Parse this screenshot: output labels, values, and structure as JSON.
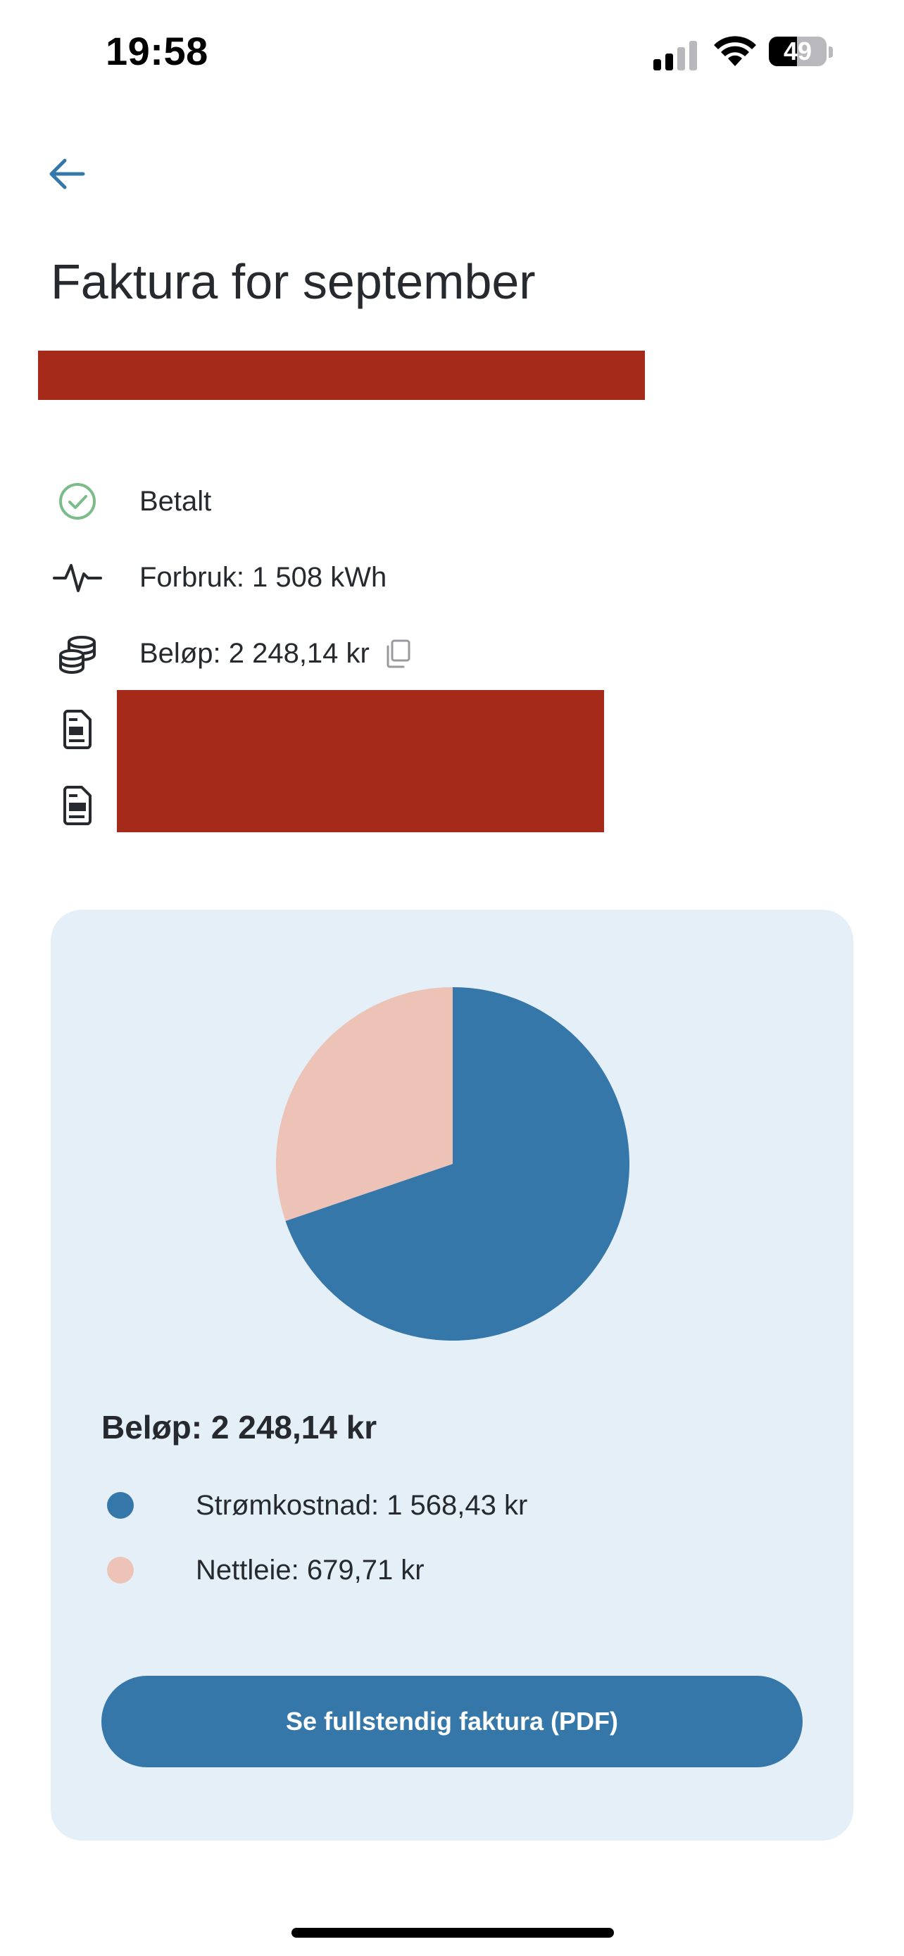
{
  "status_bar": {
    "time": "19:58",
    "battery_level": "49",
    "signal_bars_active": 2,
    "signal_bars_total": 4
  },
  "header": {
    "back_icon": "arrow-left-icon",
    "title": "Faktura for september"
  },
  "details": [
    {
      "icon": "check-circle-icon",
      "text": "Betalt"
    },
    {
      "icon": "activity-icon",
      "text": "Forbruk: 1 508 kWh"
    },
    {
      "icon": "coins-icon",
      "text": "Beløp: 2 248,14 kr",
      "copy_icon": "copy-icon"
    },
    {
      "icon": "document-icon"
    },
    {
      "icon": "document-icon"
    }
  ],
  "summary": {
    "total_label": "Beløp: 2 248,14 kr",
    "button_label": "Se fullstendig faktura (PDF)"
  },
  "chart_data": {
    "type": "pie",
    "slices": [
      {
        "label": "Strømkostnad: 1 568,43 kr",
        "value": 1568.43,
        "color": "#3677aa"
      },
      {
        "label": "Nettleie: 679,71 kr",
        "value": 679.71,
        "color": "#edc3b8"
      }
    ]
  },
  "colors": {
    "accent": "#3677aa",
    "secondary": "#edc3b8",
    "card_background": "#e5eff8",
    "paid_green": "#7cbb8a",
    "redaction": "#a52a19"
  }
}
